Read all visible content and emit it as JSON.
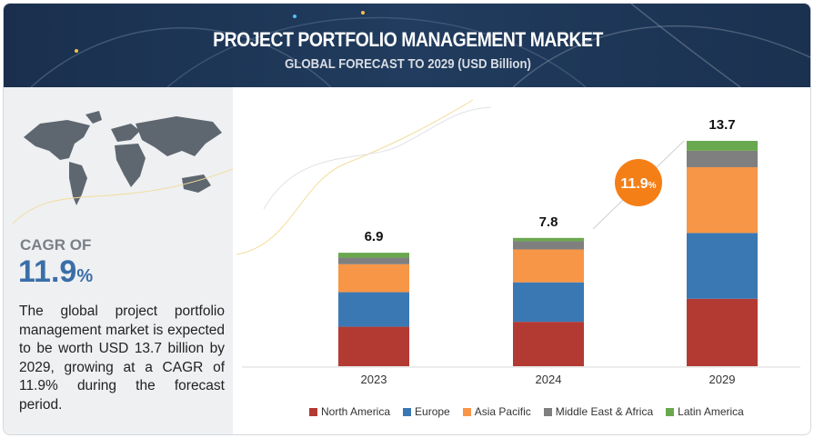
{
  "header": {
    "title": "PROJECT PORTFOLIO MANAGEMENT MARKET",
    "subtitle": "GLOBAL FORECAST TO 2029 (USD Billion)"
  },
  "left_panel": {
    "cagr_label": "CAGR OF",
    "cagr_value": "11.9",
    "cagr_unit": "%",
    "description": "The global project portfolio management market is expected to be worth USD 13.7 billion by 2029, growing at a CAGR of 11.9% during the forecast period."
  },
  "chart_data": {
    "type": "bar",
    "stacked": true,
    "categories": [
      "2023",
      "2024",
      "2029"
    ],
    "totals": [
      "6.9",
      "7.8",
      "13.7"
    ],
    "series": [
      {
        "name": "North America",
        "color": "#b33a32",
        "values": [
          2.4,
          2.7,
          4.1
        ]
      },
      {
        "name": "Europe",
        "color": "#3a78b4",
        "values": [
          2.1,
          2.4,
          4.0
        ]
      },
      {
        "name": "Asia Pacific",
        "color": "#f79646",
        "values": [
          1.7,
          2.0,
          4.0
        ]
      },
      {
        "name": "Middle East & Africa",
        "color": "#7f7f7f",
        "values": [
          0.4,
          0.5,
          1.0
        ]
      },
      {
        "name": "Latin America",
        "color": "#6aa84f",
        "values": [
          0.3,
          0.2,
          0.6
        ]
      }
    ],
    "annotation": {
      "cagr": "11.9",
      "unit": "%",
      "color": "#f57f17"
    },
    "legend_position": "bottom",
    "grid": false
  }
}
